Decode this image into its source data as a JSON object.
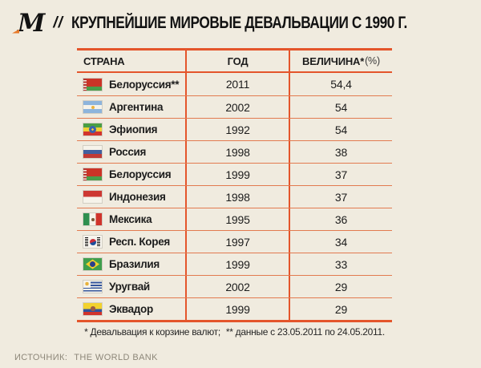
{
  "brand": {
    "logo": "М",
    "separator": "//"
  },
  "title": "КРУПНЕЙШИЕ МИРОВЫЕ ДЕВАЛЬВАЦИИ С 1990 Г.",
  "table": {
    "columns": [
      {
        "label": "СТРАНА"
      },
      {
        "label": "ГОД"
      },
      {
        "label_bold": "ВЕЛИЧИНА*",
        "label_light": "(%)"
      }
    ],
    "rows": [
      {
        "country": "Белоруссия**",
        "flag": "belarus",
        "year": "2011",
        "value": "54,4"
      },
      {
        "country": "Аргентина",
        "flag": "argentina",
        "year": "2002",
        "value": "54"
      },
      {
        "country": "Эфиопия",
        "flag": "ethiopia",
        "year": "1992",
        "value": "54"
      },
      {
        "country": "Россия",
        "flag": "russia",
        "year": "1998",
        "value": "38"
      },
      {
        "country": "Белоруссия",
        "flag": "belarus",
        "year": "1999",
        "value": "37"
      },
      {
        "country": "Индонезия",
        "flag": "indonesia",
        "year": "1998",
        "value": "37"
      },
      {
        "country": "Мексика",
        "flag": "mexico",
        "year": "1995",
        "value": "36"
      },
      {
        "country": "Респ. Корея",
        "flag": "south-korea",
        "year": "1997",
        "value": "34"
      },
      {
        "country": "Бразилия",
        "flag": "brazil",
        "year": "1999",
        "value": "33"
      },
      {
        "country": "Уругвай",
        "flag": "uruguay",
        "year": "2002",
        "value": "29"
      },
      {
        "country": "Эквадор",
        "flag": "ecuador",
        "year": "1999",
        "value": "29"
      }
    ]
  },
  "footnote": {
    "part1": "* Девальвация к корзине валют;",
    "part2": "** данные с 23.05.2011 по 24.05.2011."
  },
  "source": {
    "label": "ИСТОЧНИК:",
    "value": "THE WORLD BANK"
  },
  "colors": {
    "background": "#f0ebdf",
    "border_strong": "#e4552b",
    "border_thin": "#e27a50",
    "text": "#1c1c1c",
    "muted": "#8d8779",
    "logo_accent": "#e87a2a"
  },
  "chart_data": {
    "type": "table",
    "title": "КРУПНЕЙШИЕ МИРОВЫЕ ДЕВАЛЬВАЦИИ С 1990 Г.",
    "columns": [
      "СТРАНА",
      "ГОД",
      "ВЕЛИЧИНА*(%)"
    ],
    "rows": [
      [
        "Белоруссия**",
        2011,
        54.4
      ],
      [
        "Аргентина",
        2002,
        54
      ],
      [
        "Эфиопия",
        1992,
        54
      ],
      [
        "Россия",
        1998,
        38
      ],
      [
        "Белоруссия",
        1999,
        37
      ],
      [
        "Индонезия",
        1998,
        37
      ],
      [
        "Мексика",
        1995,
        36
      ],
      [
        "Респ. Корея",
        1997,
        34
      ],
      [
        "Бразилия",
        1999,
        33
      ],
      [
        "Уругвай",
        2002,
        29
      ],
      [
        "Эквадор",
        1999,
        29
      ]
    ],
    "footnotes": [
      "* Девальвация к корзине валют;",
      "** данные с 23.05.2011 по 24.05.2011."
    ],
    "source": "THE WORLD BANK"
  }
}
